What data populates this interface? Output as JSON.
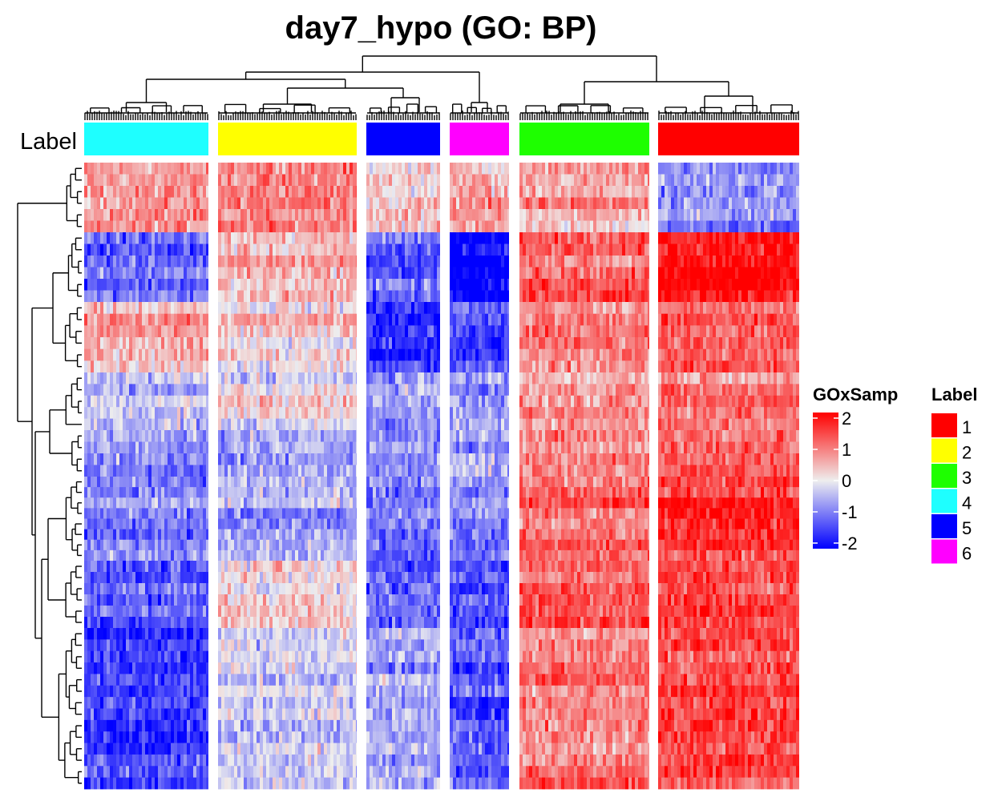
{
  "chart_data": {
    "type": "heatmap",
    "title": "day7_hypo (GO: BP)",
    "annotation_label": "Label",
    "column_groups": [
      {
        "label": "4",
        "color": "#1EFFFF"
      },
      {
        "label": "2",
        "color": "#FFFF00"
      },
      {
        "label": "5",
        "color": "#0000FF"
      },
      {
        "label": "6",
        "color": "#FF00FF"
      },
      {
        "label": "3",
        "color": "#1EFF00"
      },
      {
        "label": "1",
        "color": "#FF0000"
      }
    ],
    "row_blocks_mean": [
      [
        0.6,
        0.9,
        0.3,
        0.7,
        0.5,
        -0.8
      ],
      [
        -1.1,
        0.4,
        -1.2,
        -2.0,
        1.2,
        1.8
      ],
      [
        0.4,
        0.3,
        -1.6,
        -1.4,
        1.0,
        1.3
      ],
      [
        -0.3,
        0.0,
        -0.6,
        -0.8,
        0.8,
        1.0
      ],
      [
        -0.8,
        -0.6,
        -0.7,
        -0.5,
        0.9,
        1.4
      ],
      [
        -1.0,
        -0.6,
        -0.9,
        -0.9,
        1.1,
        1.6
      ],
      [
        -1.2,
        0.0,
        -1.0,
        -1.3,
        1.1,
        1.5
      ],
      [
        -1.4,
        -0.3,
        -0.6,
        -1.2,
        1.0,
        1.5
      ]
    ],
    "color_scale": {
      "title": "GOxSamp",
      "ticks": [
        2,
        1,
        0,
        -1,
        -2
      ],
      "colors": {
        "high": "#FF0000",
        "mid": "#EEEEEE",
        "low": "#0000FF"
      },
      "range": [
        -2,
        2
      ]
    },
    "legend": {
      "title": "Label",
      "items": [
        {
          "label": "1",
          "color": "#FF0000"
        },
        {
          "label": "2",
          "color": "#FFFF00"
        },
        {
          "label": "3",
          "color": "#1EFF00"
        },
        {
          "label": "4",
          "color": "#1EFFFF"
        },
        {
          "label": "5",
          "color": "#0000FF"
        },
        {
          "label": "6",
          "color": "#FF00FF"
        }
      ]
    }
  }
}
